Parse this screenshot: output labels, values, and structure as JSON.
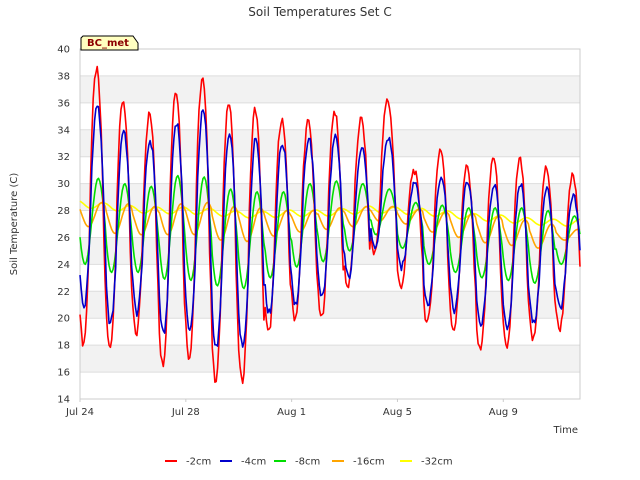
{
  "chart_data": {
    "type": "line",
    "title": "Soil Temperatures Set C",
    "xlabel": "Time",
    "ylabel": "Soil Temperature (C)",
    "badge": "BC_met",
    "ylim": [
      14,
      40
    ],
    "xlim": [
      "2024-07-24",
      "2024-08-11"
    ],
    "yticks": [
      14,
      16,
      18,
      20,
      22,
      24,
      26,
      28,
      30,
      32,
      34,
      36,
      38,
      40
    ],
    "xticks": [
      {
        "date": "2024-07-24",
        "label": "Jul 24"
      },
      {
        "date": "2024-07-28",
        "label": "Jul 28"
      },
      {
        "date": "2024-08-01",
        "label": "Aug 1"
      },
      {
        "date": "2024-08-05",
        "label": "Aug 5"
      },
      {
        "date": "2024-08-09",
        "label": "Aug 9"
      }
    ],
    "grid": true,
    "legend": "bottom",
    "series": [
      {
        "name": "-2cm",
        "color": "#ff0000"
      },
      {
        "name": "-4cm",
        "color": "#0000cc"
      },
      {
        "name": "-8cm",
        "color": "#00dd00"
      },
      {
        "name": "-16cm",
        "color": "#ffa500"
      },
      {
        "name": "-32cm",
        "color": "#ffff00"
      }
    ],
    "daily": [
      {
        "date": "2024-07-24",
        "s2": [
          18.1,
          38.5
        ],
        "s4": [
          20.8,
          35.8
        ],
        "s8": [
          24.0,
          30.4
        ],
        "s16": [
          26.8,
          28.6
        ],
        "s32": 28.5
      },
      {
        "date": "2024-07-25",
        "s2": [
          17.8,
          36.2
        ],
        "s4": [
          19.6,
          34.0
        ],
        "s8": [
          23.4,
          30.0
        ],
        "s16": [
          26.3,
          28.5
        ],
        "s32": 28.3
      },
      {
        "date": "2024-07-26",
        "s2": [
          18.8,
          35.2
        ],
        "s4": [
          20.4,
          33.2
        ],
        "s8": [
          23.4,
          29.8
        ],
        "s16": [
          26.2,
          28.3
        ],
        "s32": 28.1
      },
      {
        "date": "2024-07-27",
        "s2": [
          16.6,
          37.0
        ],
        "s4": [
          18.8,
          34.6
        ],
        "s8": [
          22.9,
          30.6
        ],
        "s16": [
          26.2,
          28.5
        ],
        "s32": 28.0
      },
      {
        "date": "2024-07-28",
        "s2": [
          17.1,
          37.8
        ],
        "s4": [
          19.0,
          35.4
        ],
        "s8": [
          22.8,
          30.5
        ],
        "s16": [
          26.2,
          28.6
        ],
        "s32": 28.0
      },
      {
        "date": "2024-07-29",
        "s2": [
          15.4,
          36.2
        ],
        "s4": [
          17.8,
          33.6
        ],
        "s8": [
          22.4,
          29.6
        ],
        "s16": [
          25.8,
          28.3
        ],
        "s32": 27.9
      },
      {
        "date": "2024-07-30",
        "s2": [
          15.3,
          35.6
        ],
        "s4": [
          17.8,
          33.4
        ],
        "s8": [
          22.2,
          29.4
        ],
        "s16": [
          25.7,
          28.2
        ],
        "s32": 27.7
      },
      {
        "date": "2024-07-31",
        "s2": [
          18.9,
          34.8
        ],
        "s4": [
          20.4,
          33.0
        ],
        "s8": [
          23.0,
          29.4
        ],
        "s16": [
          26.1,
          28.0
        ],
        "s32": 27.7
      },
      {
        "date": "2024-08-01",
        "s2": [
          20.0,
          34.6
        ],
        "s4": [
          21.0,
          33.4
        ],
        "s8": [
          23.8,
          30.0
        ],
        "s16": [
          26.4,
          28.0
        ],
        "s32": 27.8
      },
      {
        "date": "2024-08-02",
        "s2": [
          20.0,
          35.4
        ],
        "s4": [
          21.6,
          33.4
        ],
        "s8": [
          24.2,
          30.2
        ],
        "s16": [
          26.6,
          28.2
        ],
        "s32": 27.8
      },
      {
        "date": "2024-08-03",
        "s2": [
          22.3,
          34.8
        ],
        "s4": [
          23.0,
          32.8
        ],
        "s8": [
          25.0,
          30.0
        ],
        "s16": [
          26.8,
          28.3
        ],
        "s32": 27.9
      },
      {
        "date": "2024-08-04",
        "s2": [
          24.8,
          36.2
        ],
        "s4": [
          25.0,
          33.4
        ],
        "s8": [
          26.2,
          29.6
        ],
        "s16": [
          27.2,
          28.3
        ],
        "s32": 28.1
      },
      {
        "date": "2024-08-05",
        "s2": [
          22.4,
          31.0
        ],
        "s4": [
          23.8,
          30.2
        ],
        "s8": [
          25.2,
          28.6
        ],
        "s16": [
          27.0,
          28.1
        ],
        "s32": 28.0
      },
      {
        "date": "2024-08-06",
        "s2": [
          19.6,
          32.6
        ],
        "s4": [
          21.0,
          30.6
        ],
        "s8": [
          24.0,
          28.4
        ],
        "s16": [
          26.4,
          27.9
        ],
        "s32": 27.9
      },
      {
        "date": "2024-08-07",
        "s2": [
          19.2,
          31.2
        ],
        "s4": [
          20.6,
          30.2
        ],
        "s8": [
          23.4,
          28.2
        ],
        "s16": [
          26.0,
          27.8
        ],
        "s32": 27.7
      },
      {
        "date": "2024-08-08",
        "s2": [
          17.6,
          32.0
        ],
        "s4": [
          19.4,
          30.0
        ],
        "s8": [
          23.0,
          28.2
        ],
        "s16": [
          25.6,
          27.6
        ],
        "s32": 27.5
      },
      {
        "date": "2024-08-09",
        "s2": [
          17.8,
          31.8
        ],
        "s4": [
          19.4,
          30.0
        ],
        "s8": [
          22.8,
          28.2
        ],
        "s16": [
          25.4,
          27.3
        ],
        "s32": 27.4
      },
      {
        "date": "2024-08-10",
        "s2": [
          18.4,
          31.2
        ],
        "s4": [
          19.6,
          29.6
        ],
        "s8": [
          22.6,
          28.0
        ],
        "s16": [
          25.2,
          27.0
        ],
        "s32": 27.2
      },
      {
        "date": "2024-08-11",
        "s2": [
          19.2,
          30.6
        ],
        "s4": [
          20.8,
          29.0
        ],
        "s8": [
          24.0,
          27.6
        ],
        "s16": [
          25.8,
          26.6
        ],
        "s32": 27.1
      }
    ]
  }
}
